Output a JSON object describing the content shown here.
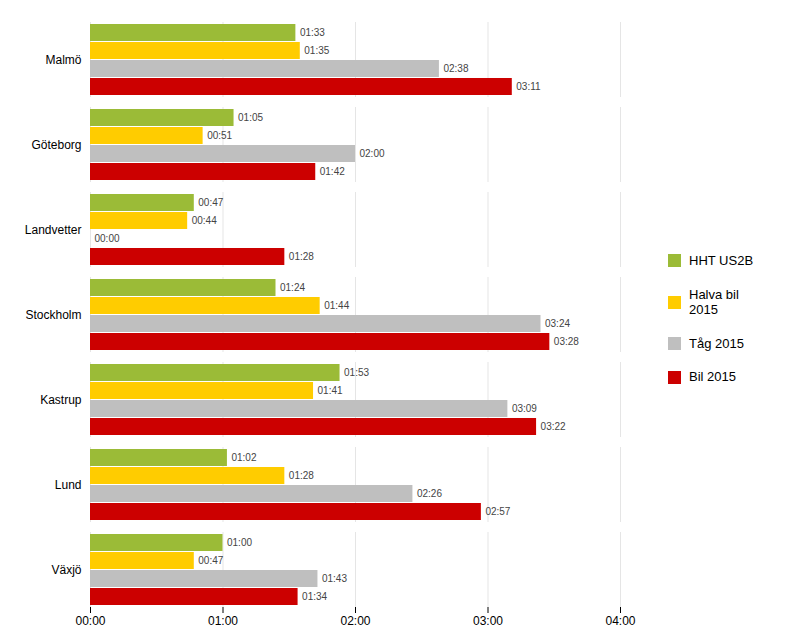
{
  "chart_data": {
    "type": "bar",
    "orientation": "horizontal",
    "categories": [
      "Malmö",
      "Göteborg",
      "Landvetter",
      "Stockholm",
      "Kastrup",
      "Lund",
      "Växjö"
    ],
    "series": [
      {
        "name": "HHT US2B",
        "color": "#9BBB37",
        "values": [
          93,
          65,
          47,
          84,
          113,
          62,
          60
        ],
        "value_labels": [
          "01:33",
          "01:05",
          "00:47",
          "01:24",
          "01:53",
          "01:02",
          "01:00"
        ]
      },
      {
        "name": "Halva bil\n2015",
        "color": "#FFCC00",
        "values": [
          95,
          51,
          44,
          104,
          101,
          88,
          47
        ],
        "value_labels": [
          "01:35",
          "00:51",
          "00:44",
          "01:44",
          "01:41",
          "01:28",
          "00:47"
        ]
      },
      {
        "name": "Tåg 2015",
        "color": "#BFBFBF",
        "values": [
          158,
          120,
          0,
          204,
          189,
          146,
          103
        ],
        "value_labels": [
          "02:38",
          "02:00",
          "00:00",
          "03:24",
          "03:09",
          "02:26",
          "01:43"
        ]
      },
      {
        "name": "Bil 2015",
        "color": "#CC0000",
        "values": [
          191,
          102,
          88,
          208,
          202,
          177,
          94
        ],
        "value_labels": [
          "03:11",
          "01:42",
          "01:28",
          "03:28",
          "03:22",
          "02:57",
          "01:34"
        ]
      }
    ],
    "xlim": [
      0,
      240
    ],
    "xticks": [
      {
        "value": 0,
        "label": "00:00"
      },
      {
        "value": 60,
        "label": "01:00"
      },
      {
        "value": 120,
        "label": "02:00"
      },
      {
        "value": 180,
        "label": "03:00"
      },
      {
        "value": 240,
        "label": "04:00"
      }
    ],
    "grid": true,
    "data_labels": true,
    "legend": "right"
  }
}
